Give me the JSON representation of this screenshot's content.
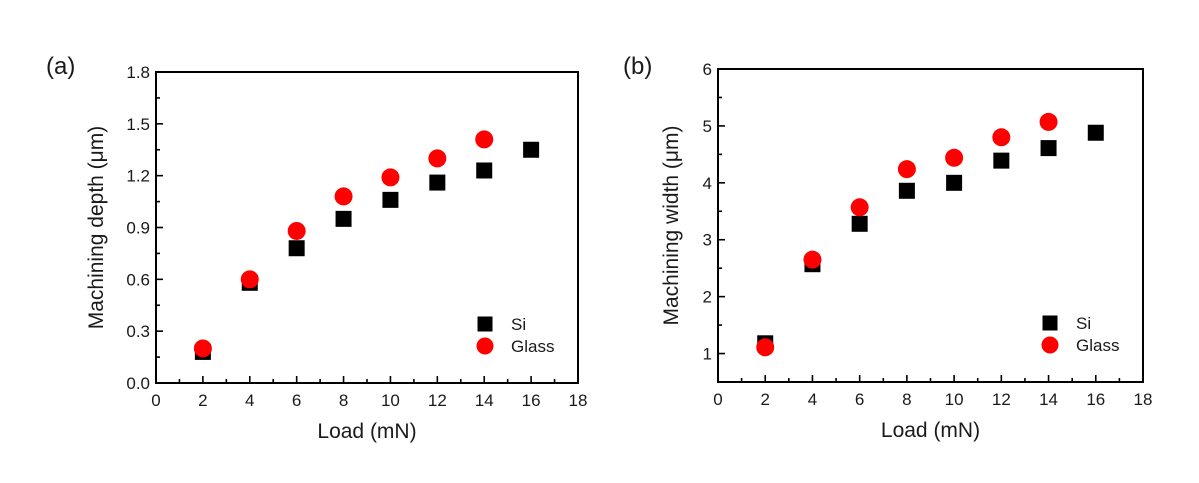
{
  "chart_data": [
    {
      "type": "scatter",
      "panel_label": "(a)",
      "title": "",
      "xlabel": "Load (mN)",
      "ylabel": "Machining depth (μm)",
      "xlim": [
        0,
        18
      ],
      "ylim": [
        0,
        1.8
      ],
      "xticks": [
        0,
        2,
        4,
        6,
        8,
        10,
        12,
        14,
        16,
        18
      ],
      "xtick_labels": [
        "0",
        "2",
        "4",
        "6",
        "8",
        "10",
        "12",
        "14",
        "16",
        "18"
      ],
      "yticks": [
        0,
        0.3,
        0.6,
        0.9,
        1.2,
        1.5,
        1.8
      ],
      "ytick_labels": [
        "0.0",
        "0.3",
        "0.6",
        "0.9",
        "1.2",
        "1.5",
        "1.8"
      ],
      "grid": false,
      "legend_position": "bottom-right",
      "series": [
        {
          "name": "Si",
          "marker": "square",
          "color": "#000000",
          "x": [
            2,
            4,
            6,
            8,
            10,
            12,
            14,
            16
          ],
          "y": [
            0.18,
            0.58,
            0.78,
            0.95,
            1.06,
            1.16,
            1.23,
            1.35
          ]
        },
        {
          "name": "Glass",
          "marker": "circle",
          "color": "#ff0000",
          "x": [
            2,
            4,
            6,
            8,
            10,
            12,
            14
          ],
          "y": [
            0.2,
            0.6,
            0.88,
            1.08,
            1.19,
            1.3,
            1.41
          ]
        }
      ]
    },
    {
      "type": "scatter",
      "panel_label": "(b)",
      "title": "",
      "xlabel": "Load (mN)",
      "ylabel": "Machining width (μm)",
      "xlim": [
        0,
        18
      ],
      "ylim": [
        0.5,
        6
      ],
      "xticks": [
        0,
        2,
        4,
        6,
        8,
        10,
        12,
        14,
        16,
        18
      ],
      "xtick_labels": [
        "0",
        "2",
        "4",
        "6",
        "8",
        "10",
        "12",
        "14",
        "16",
        "18"
      ],
      "yticks": [
        1,
        2,
        3,
        4,
        5,
        6
      ],
      "ytick_labels": [
        "1",
        "2",
        "3",
        "4",
        "5",
        "6"
      ],
      "grid": false,
      "legend_position": "bottom-right",
      "series": [
        {
          "name": "Si",
          "marker": "square",
          "color": "#000000",
          "x": [
            2,
            4,
            6,
            8,
            10,
            12,
            14,
            16
          ],
          "y": [
            1.18,
            2.57,
            3.28,
            3.86,
            4.0,
            4.39,
            4.61,
            4.88
          ]
        },
        {
          "name": "Glass",
          "marker": "circle",
          "color": "#ff0000",
          "x": [
            2,
            4,
            6,
            8,
            10,
            12,
            14
          ],
          "y": [
            1.11,
            2.65,
            3.57,
            4.24,
            4.44,
            4.8,
            5.07
          ]
        }
      ]
    }
  ]
}
